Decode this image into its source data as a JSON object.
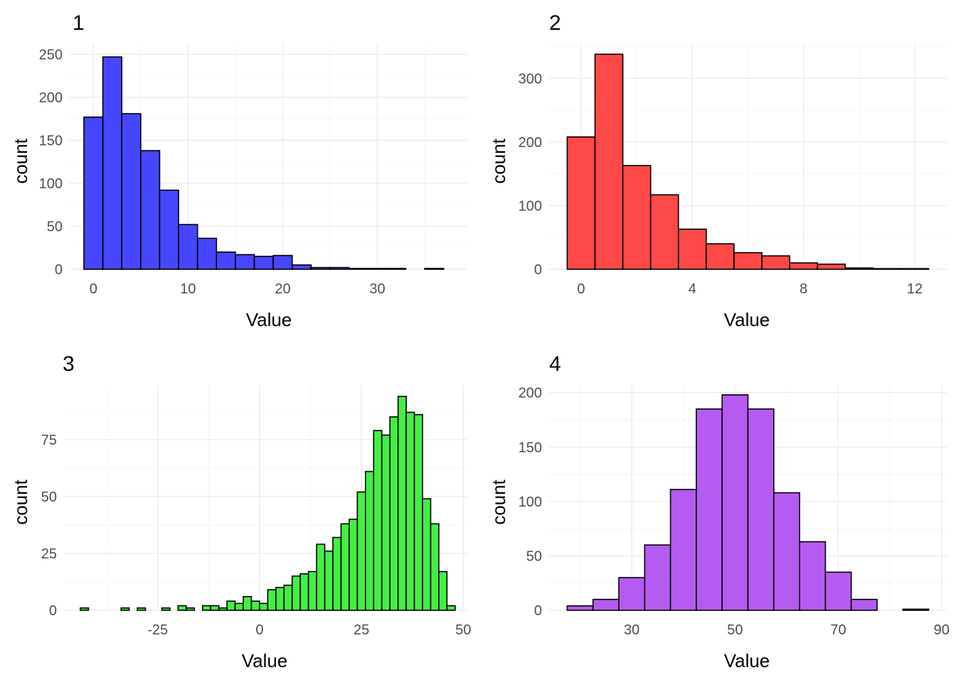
{
  "colors": {
    "panel_1": "#4646FF",
    "panel_2": "#FF4848",
    "panel_3": "#44EE44",
    "panel_4": "#B65BF2",
    "bar_outline": "#000000",
    "grid": "#EBEBEB"
  },
  "chart_data": [
    {
      "type": "bar",
      "title": "1",
      "xlabel": "Value",
      "ylabel": "count",
      "x_ticks": [
        "0",
        "10",
        "20",
        "30"
      ],
      "x_tick_values": [
        0,
        10,
        20,
        30
      ],
      "y_ticks": [
        "0",
        "50",
        "100",
        "150",
        "200",
        "250"
      ],
      "y_tick_values": [
        0,
        50,
        100,
        150,
        200,
        250
      ],
      "xlim": [
        -2.5,
        39.5
      ],
      "ylim": [
        0,
        262
      ],
      "grid": true,
      "bin_width": 2,
      "bins": [
        {
          "x": 0,
          "count": 177
        },
        {
          "x": 2,
          "count": 247
        },
        {
          "x": 4,
          "count": 181
        },
        {
          "x": 6,
          "count": 138
        },
        {
          "x": 8,
          "count": 92
        },
        {
          "x": 10,
          "count": 52
        },
        {
          "x": 12,
          "count": 36
        },
        {
          "x": 14,
          "count": 20
        },
        {
          "x": 16,
          "count": 17
        },
        {
          "x": 18,
          "count": 15
        },
        {
          "x": 20,
          "count": 16
        },
        {
          "x": 22,
          "count": 5
        },
        {
          "x": 24,
          "count": 2
        },
        {
          "x": 26,
          "count": 2
        },
        {
          "x": 28,
          "count": 1
        },
        {
          "x": 30,
          "count": 1
        },
        {
          "x": 32,
          "count": 1
        },
        {
          "x": 34,
          "count": 0
        },
        {
          "x": 36,
          "count": 1
        }
      ]
    },
    {
      "type": "bar",
      "title": "2",
      "xlabel": "Value",
      "ylabel": "count",
      "x_ticks": [
        "0",
        "4",
        "8",
        "12"
      ],
      "x_tick_values": [
        0,
        4,
        8,
        12
      ],
      "y_ticks": [
        "0",
        "100",
        "200",
        "300"
      ],
      "y_tick_values": [
        0,
        100,
        200,
        300
      ],
      "xlim": [
        -1.15,
        13.15
      ],
      "ylim": [
        0,
        354
      ],
      "grid": true,
      "bin_width": 1,
      "bins": [
        {
          "x": 0,
          "count": 208
        },
        {
          "x": 1,
          "count": 338
        },
        {
          "x": 2,
          "count": 163
        },
        {
          "x": 3,
          "count": 117
        },
        {
          "x": 4,
          "count": 63
        },
        {
          "x": 5,
          "count": 40
        },
        {
          "x": 6,
          "count": 26
        },
        {
          "x": 7,
          "count": 21
        },
        {
          "x": 8,
          "count": 10
        },
        {
          "x": 9,
          "count": 8
        },
        {
          "x": 10,
          "count": 2
        },
        {
          "x": 11,
          "count": 1
        },
        {
          "x": 12,
          "count": 1
        }
      ]
    },
    {
      "type": "bar",
      "title": "3",
      "xlabel": "Value",
      "ylabel": "count",
      "x_ticks": [
        "-25",
        "0",
        "25",
        "50"
      ],
      "x_tick_values": [
        -25,
        0,
        25,
        50
      ],
      "y_ticks": [
        "0",
        "25",
        "50",
        "75"
      ],
      "y_tick_values": [
        0,
        25,
        50,
        75
      ],
      "xlim": [
        -48,
        51
      ],
      "ylim": [
        0,
        99
      ],
      "grid": true,
      "bin_width": 2,
      "bins": [
        {
          "x": -43,
          "count": 1
        },
        {
          "x": -41,
          "count": 0
        },
        {
          "x": -39,
          "count": 0
        },
        {
          "x": -37,
          "count": 0
        },
        {
          "x": -35,
          "count": 0
        },
        {
          "x": -33,
          "count": 1
        },
        {
          "x": -31,
          "count": 0
        },
        {
          "x": -29,
          "count": 1
        },
        {
          "x": -27,
          "count": 0
        },
        {
          "x": -25,
          "count": 0
        },
        {
          "x": -23,
          "count": 1
        },
        {
          "x": -21,
          "count": 0
        },
        {
          "x": -19,
          "count": 2
        },
        {
          "x": -17,
          "count": 1
        },
        {
          "x": -15,
          "count": 0
        },
        {
          "x": -13,
          "count": 2
        },
        {
          "x": -11,
          "count": 2
        },
        {
          "x": -9,
          "count": 1
        },
        {
          "x": -7,
          "count": 4
        },
        {
          "x": -5,
          "count": 3
        },
        {
          "x": -3,
          "count": 6
        },
        {
          "x": -1,
          "count": 4
        },
        {
          "x": 1,
          "count": 3
        },
        {
          "x": 3,
          "count": 9
        },
        {
          "x": 5,
          "count": 10
        },
        {
          "x": 7,
          "count": 11
        },
        {
          "x": 9,
          "count": 15
        },
        {
          "x": 11,
          "count": 16
        },
        {
          "x": 13,
          "count": 17
        },
        {
          "x": 15,
          "count": 29
        },
        {
          "x": 17,
          "count": 26
        },
        {
          "x": 19,
          "count": 32
        },
        {
          "x": 21,
          "count": 38
        },
        {
          "x": 23,
          "count": 40
        },
        {
          "x": 25,
          "count": 52
        },
        {
          "x": 27,
          "count": 61
        },
        {
          "x": 29,
          "count": 79
        },
        {
          "x": 31,
          "count": 77
        },
        {
          "x": 33,
          "count": 85
        },
        {
          "x": 35,
          "count": 94
        },
        {
          "x": 37,
          "count": 87
        },
        {
          "x": 39,
          "count": 86
        },
        {
          "x": 41,
          "count": 49
        },
        {
          "x": 43,
          "count": 38
        },
        {
          "x": 45,
          "count": 17
        },
        {
          "x": 47,
          "count": 2
        }
      ]
    },
    {
      "type": "bar",
      "title": "4",
      "xlabel": "Value",
      "ylabel": "count",
      "x_ticks": [
        "30",
        "50",
        "70",
        "90"
      ],
      "x_tick_values": [
        30,
        50,
        70,
        90
      ],
      "y_ticks": [
        "0",
        "50",
        "100",
        "150",
        "200"
      ],
      "y_tick_values": [
        0,
        50,
        100,
        150,
        200
      ],
      "xlim": [
        14,
        91
      ],
      "ylim": [
        0,
        207
      ],
      "grid": true,
      "bin_width": 5,
      "bins": [
        {
          "x": 20,
          "count": 4
        },
        {
          "x": 25,
          "count": 10
        },
        {
          "x": 30,
          "count": 30
        },
        {
          "x": 35,
          "count": 60
        },
        {
          "x": 40,
          "count": 111
        },
        {
          "x": 45,
          "count": 185
        },
        {
          "x": 50,
          "count": 198
        },
        {
          "x": 55,
          "count": 185
        },
        {
          "x": 60,
          "count": 108
        },
        {
          "x": 65,
          "count": 63
        },
        {
          "x": 70,
          "count": 35
        },
        {
          "x": 75,
          "count": 10
        },
        {
          "x": 80,
          "count": 0
        },
        {
          "x": 85,
          "count": 1
        }
      ]
    }
  ]
}
